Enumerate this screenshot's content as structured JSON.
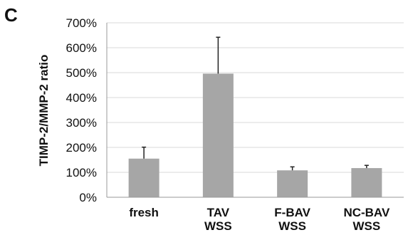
{
  "panel_label": "C",
  "chart_data": {
    "type": "bar",
    "categories": [
      [
        "fresh"
      ],
      [
        "TAV",
        "WSS"
      ],
      [
        "F-BAV",
        "WSS"
      ],
      [
        "NC-BAV",
        "WSS"
      ]
    ],
    "values": [
      155,
      496,
      108,
      117
    ],
    "error_upper": [
      201,
      642,
      122,
      128
    ],
    "ylabel": "TIMP-2/MMP-2 ratio",
    "ylim": [
      0,
      700
    ],
    "yticks": [
      0,
      100,
      200,
      300,
      400,
      500,
      600,
      700
    ],
    "ytick_labels": [
      "0%",
      "100%",
      "200%",
      "300%",
      "400%",
      "500%",
      "600%",
      "700%"
    ],
    "grid": true,
    "colors": {
      "bar": "#a6a6a6",
      "grid": "#d9d9d9",
      "axis": "#9a9a9a",
      "error": "#222222"
    }
  }
}
